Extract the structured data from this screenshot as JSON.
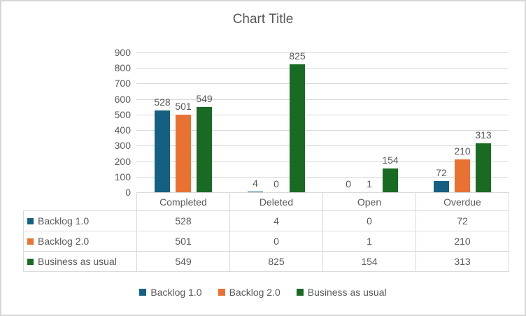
{
  "window": {
    "background": "#FFFFFF",
    "border_color": "#D7D7D7"
  },
  "chart_data": {
    "type": "bar",
    "title": "Chart Title",
    "categories": [
      "Completed",
      "Deleted",
      "Open",
      "Overdue"
    ],
    "series": [
      {
        "name": "Backlog 1.0",
        "color": "#156082",
        "values": [
          528,
          4,
          0,
          72
        ]
      },
      {
        "name": "Backlog 2.0",
        "color": "#E97132",
        "values": [
          501,
          0,
          1,
          210
        ]
      },
      {
        "name": "Business as usual",
        "color": "#196B24",
        "values": [
          549,
          825,
          154,
          313
        ]
      }
    ],
    "xlabel": "",
    "ylabel": "",
    "ylim": [
      0,
      900
    ],
    "ytick_step": 100,
    "grid": true,
    "gridline_color": "#D9D9D9",
    "text_color": "#595959",
    "table_border_color": "#D9D9D9",
    "data_labels": true,
    "show_data_table": true,
    "legend_position": "bottom"
  }
}
